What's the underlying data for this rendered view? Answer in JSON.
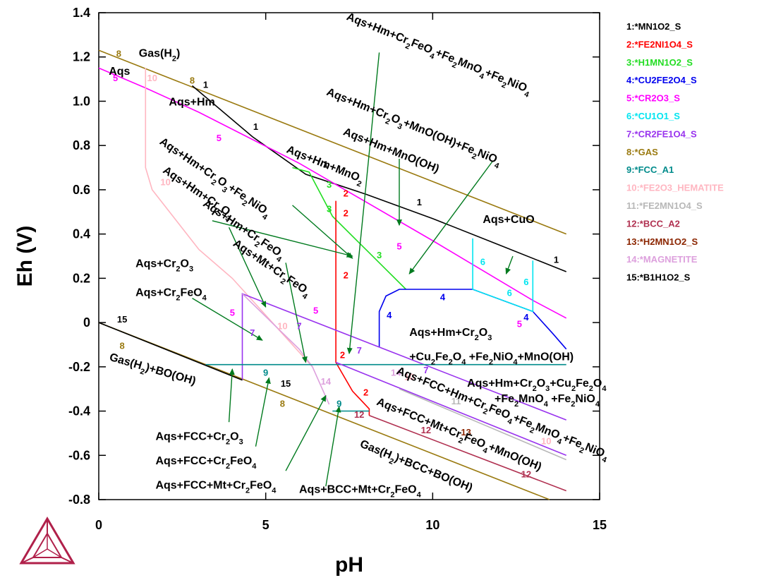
{
  "chart_data": {
    "type": "line",
    "xlabel": "pH",
    "ylabel": "Eh (V)",
    "xlim": [
      0,
      15
    ],
    "ylim": [
      -0.8,
      1.4
    ],
    "xticks": [
      0,
      5,
      10,
      15
    ],
    "yticks": [
      1.4,
      1.2,
      1.0,
      0.8,
      0.6,
      0.4,
      0.2,
      0,
      -0.2,
      -0.4,
      -0.6,
      -0.8
    ],
    "legend_position": "right",
    "legend": [
      {
        "id": "1",
        "label": "1:*MN1O2_S",
        "color": "#000000"
      },
      {
        "id": "2",
        "label": "2:*FE2NI1O4_S",
        "color": "#ff0000"
      },
      {
        "id": "3",
        "label": "3:*H1MN1O2_S",
        "color": "#22dd22"
      },
      {
        "id": "4",
        "label": "4:*CU2FE2O4_S",
        "color": "#0000ee"
      },
      {
        "id": "5",
        "label": "5:*CR2O3_S",
        "color": "#ff00ff"
      },
      {
        "id": "6",
        "label": "6:*CU1O1_S",
        "color": "#00e5f0"
      },
      {
        "id": "7",
        "label": "7:*CR2FE1O4_S",
        "color": "#9933ee"
      },
      {
        "id": "8",
        "label": "8:*GAS",
        "color": "#9a7a10"
      },
      {
        "id": "9",
        "label": "9:*FCC_A1",
        "color": "#008b8b"
      },
      {
        "id": "10",
        "label": "10:*FE2O3_HEMATITE",
        "color": "#ffb6c1"
      },
      {
        "id": "11",
        "label": "11:*FE2MN1O4_S",
        "color": "#b8b8b8"
      },
      {
        "id": "12",
        "label": "12:*BCC_A2",
        "color": "#b03050"
      },
      {
        "id": "13",
        "label": "13:*H2MN1O2_S",
        "color": "#8b2500"
      },
      {
        "id": "14",
        "label": "14:*MAGNETITE",
        "color": "#dda0dd"
      },
      {
        "id": "15",
        "label": "15:*B1H1O2_S",
        "color": "#000000"
      }
    ],
    "series": [
      {
        "id": "8",
        "color": "#9a7a10",
        "x": [
          0,
          14
        ],
        "y": [
          1.23,
          0.4
        ]
      },
      {
        "id": "8",
        "color": "#9a7a10",
        "x": [
          0,
          13.5
        ],
        "y": [
          0.0,
          -0.8
        ]
      },
      {
        "id": "1",
        "color": "#000000",
        "x": [
          2.8,
          4.6,
          6.2,
          8.0,
          10.0,
          12.0,
          14.0
        ],
        "y": [
          1.07,
          0.84,
          0.67,
          0.58,
          0.47,
          0.35,
          0.23
        ]
      },
      {
        "id": "5",
        "color": "#ff00ff",
        "x": [
          0,
          1.4,
          3.0,
          6.0,
          10.0,
          13.0,
          14.0
        ],
        "y": [
          1.15,
          1.06,
          0.95,
          0.72,
          0.37,
          0.1,
          0.02
        ]
      },
      {
        "id": "3",
        "color": "#22dd22",
        "x": [
          5.8,
          6.3,
          7.0,
          8.0,
          9.2
        ],
        "y": [
          0.7,
          0.68,
          0.48,
          0.33,
          0.15
        ]
      },
      {
        "id": "2",
        "color": "#ff0000",
        "x": [
          7.1,
          7.1,
          7.6,
          8.1,
          8.1
        ],
        "y": [
          0.55,
          -0.18,
          -0.31,
          -0.39,
          -0.42
        ]
      },
      {
        "id": "4",
        "color": "#0000ee",
        "x": [
          8.4,
          8.4,
          8.6,
          9.0,
          10.0,
          11.2,
          13.0,
          13.6,
          14.0
        ],
        "y": [
          -0.11,
          0.05,
          0.12,
          0.15,
          0.15,
          0.15,
          0.05,
          -0.05,
          -0.12
        ]
      },
      {
        "id": "6",
        "color": "#00e5f0",
        "x": [
          11.2,
          11.2,
          13.0,
          13.0
        ],
        "y": [
          0.38,
          0.15,
          0.05,
          0.28
        ]
      },
      {
        "id": "10",
        "color": "#ffb6c1",
        "x": [
          1.4,
          1.4,
          1.6,
          3.0,
          4.0,
          5.5,
          6.4
        ],
        "y": [
          1.15,
          0.7,
          0.6,
          0.33,
          0.2,
          -0.05,
          -0.2
        ]
      },
      {
        "id": "7",
        "color": "#9933ee",
        "x": [
          4.3,
          4.3,
          14.0
        ],
        "y": [
          -0.26,
          0.13,
          -0.44
        ]
      },
      {
        "id": "14",
        "color": "#dda0dd",
        "x": [
          4.3,
          6.0,
          6.4,
          6.9
        ],
        "y": [
          0.13,
          -0.12,
          -0.2,
          -0.37
        ]
      },
      {
        "id": "9",
        "color": "#008b8b",
        "x": [
          3.2,
          14.0
        ],
        "y": [
          -0.19,
          -0.19
        ]
      },
      {
        "id": "9",
        "color": "#008b8b",
        "x": [
          7.0,
          8.1
        ],
        "y": [
          -0.4,
          -0.4
        ]
      },
      {
        "id": "7",
        "color": "#9933ee",
        "x": [
          7.1,
          14.0
        ],
        "y": [
          -0.18,
          -0.6
        ]
      },
      {
        "id": "11",
        "color": "#b8b8b8",
        "x": [
          9.0,
          14.0
        ],
        "y": [
          -0.3,
          -0.62
        ]
      },
      {
        "id": "12",
        "color": "#b03050",
        "x": [
          8.1,
          14.0
        ],
        "y": [
          -0.42,
          -0.76
        ]
      },
      {
        "id": "15",
        "color": "#000000",
        "x": [
          0,
          4.3
        ],
        "y": [
          0.0,
          -0.26
        ]
      }
    ],
    "line_labels": [
      {
        "text": "8",
        "x": 0.6,
        "y": 1.2,
        "color": "#9a7a10"
      },
      {
        "text": "8",
        "x": 2.8,
        "y": 1.08,
        "color": "#9a7a10"
      },
      {
        "text": "1",
        "x": 3.2,
        "y": 1.06,
        "color": "#000000"
      },
      {
        "text": "1",
        "x": 4.7,
        "y": 0.87,
        "color": "#000000"
      },
      {
        "text": "1",
        "x": 6.8,
        "y": 0.7,
        "color": "#000000"
      },
      {
        "text": "1",
        "x": 9.6,
        "y": 0.53,
        "color": "#000000"
      },
      {
        "text": "1",
        "x": 13.7,
        "y": 0.27,
        "color": "#000000"
      },
      {
        "text": "5",
        "x": 0.5,
        "y": 1.09,
        "color": "#ff00ff"
      },
      {
        "text": "10",
        "x": 1.6,
        "y": 1.09,
        "color": "#ffb6c1"
      },
      {
        "text": "5",
        "x": 3.6,
        "y": 0.82,
        "color": "#ff00ff"
      },
      {
        "text": "3",
        "x": 6.9,
        "y": 0.61,
        "color": "#22dd22"
      },
      {
        "text": "2",
        "x": 7.4,
        "y": 0.57,
        "color": "#ff0000"
      },
      {
        "text": "3",
        "x": 6.9,
        "y": 0.5,
        "color": "#22dd22"
      },
      {
        "text": "2",
        "x": 7.4,
        "y": 0.48,
        "color": "#ff0000"
      },
      {
        "text": "10",
        "x": 2.0,
        "y": 0.62,
        "color": "#ffb6c1"
      },
      {
        "text": "5",
        "x": 9.0,
        "y": 0.33,
        "color": "#ff00ff"
      },
      {
        "text": "3",
        "x": 8.4,
        "y": 0.29,
        "color": "#22dd22"
      },
      {
        "text": "2",
        "x": 7.4,
        "y": 0.2,
        "color": "#ff0000"
      },
      {
        "text": "6",
        "x": 11.5,
        "y": 0.26,
        "color": "#00e5f0"
      },
      {
        "text": "6",
        "x": 12.3,
        "y": 0.12,
        "color": "#00e5f0"
      },
      {
        "text": "6",
        "x": 12.8,
        "y": 0.17,
        "color": "#00e5f0"
      },
      {
        "text": "4",
        "x": 10.3,
        "y": 0.1,
        "color": "#0000ee"
      },
      {
        "text": "4",
        "x": 8.7,
        "y": 0.02,
        "color": "#0000ee"
      },
      {
        "text": "4",
        "x": 12.8,
        "y": 0.01,
        "color": "#0000ee"
      },
      {
        "text": "5",
        "x": 12.6,
        "y": -0.02,
        "color": "#ff00ff"
      },
      {
        "text": "5",
        "x": 4.0,
        "y": 0.03,
        "color": "#ff00ff"
      },
      {
        "text": "5",
        "x": 6.5,
        "y": 0.04,
        "color": "#ff00ff"
      },
      {
        "text": "7",
        "x": 4.6,
        "y": -0.06,
        "color": "#9933ee"
      },
      {
        "text": "10",
        "x": 5.5,
        "y": -0.03,
        "color": "#ffb6c1"
      },
      {
        "text": "7",
        "x": 6.0,
        "y": -0.03,
        "color": "#9933ee"
      },
      {
        "text": "2",
        "x": 7.3,
        "y": -0.16,
        "color": "#ff0000"
      },
      {
        "text": "7",
        "x": 7.8,
        "y": -0.14,
        "color": "#9933ee"
      },
      {
        "text": "15",
        "x": 0.7,
        "y": 0.0,
        "color": "#000000"
      },
      {
        "text": "8",
        "x": 0.7,
        "y": -0.12,
        "color": "#9a7a10"
      },
      {
        "text": "9",
        "x": 5.0,
        "y": -0.24,
        "color": "#008b8b"
      },
      {
        "text": "15",
        "x": 5.6,
        "y": -0.29,
        "color": "#000000"
      },
      {
        "text": "14",
        "x": 6.8,
        "y": -0.28,
        "color": "#dda0dd"
      },
      {
        "text": "8",
        "x": 5.5,
        "y": -0.38,
        "color": "#9a7a10"
      },
      {
        "text": "2",
        "x": 8.0,
        "y": -0.33,
        "color": "#ff0000"
      },
      {
        "text": "9",
        "x": 7.2,
        "y": -0.38,
        "color": "#008b8b"
      },
      {
        "text": "12",
        "x": 7.8,
        "y": -0.43,
        "color": "#b03050"
      },
      {
        "text": "14",
        "x": 8.9,
        "y": -0.24,
        "color": "#dda0dd"
      },
      {
        "text": "10",
        "x": 9.3,
        "y": -0.26,
        "color": "#ffb6c1"
      },
      {
        "text": "7",
        "x": 9.8,
        "y": -0.23,
        "color": "#9933ee"
      },
      {
        "text": "11",
        "x": 10.7,
        "y": -0.37,
        "color": "#b8b8b8"
      },
      {
        "text": "12",
        "x": 9.8,
        "y": -0.5,
        "color": "#b03050"
      },
      {
        "text": "13",
        "x": 11.0,
        "y": -0.51,
        "color": "#8b2500"
      },
      {
        "text": "10",
        "x": 13.4,
        "y": -0.55,
        "color": "#ffb6c1"
      },
      {
        "text": "12",
        "x": 12.8,
        "y": -0.7,
        "color": "#b03050"
      }
    ],
    "region_labels": [
      {
        "text": "Gas(H2)",
        "x": 1.2,
        "y": 1.2
      },
      {
        "text": "Aqs",
        "x": 0.3,
        "y": 1.12
      },
      {
        "text": "Aqs+Hm",
        "x": 2.1,
        "y": 0.98
      },
      {
        "text": "Aqs+Hm+Cr2FeO4+Fe2MnO4+Fe2NiO4",
        "x": 7.4,
        "y": 1.37,
        "rotate": 22
      },
      {
        "text": "Aqs+Hm+Cr2O3+MnO(OH)+Fe2NiO4",
        "x": 6.8,
        "y": 1.03,
        "rotate": 22
      },
      {
        "text": "Aqs+Hm+MnO(OH)",
        "x": 7.3,
        "y": 0.85,
        "rotate": 22
      },
      {
        "text": "Aqs+Hm+MnO2",
        "x": 5.6,
        "y": 0.77,
        "rotate": 22
      },
      {
        "text": "Aqs+Hm+Cr2O3+Fe2NiO4",
        "x": 1.8,
        "y": 0.81,
        "rotate": 34
      },
      {
        "text": "Aqs+Hm+Cr2O3",
        "x": 1.9,
        "y": 0.68,
        "rotate": 34
      },
      {
        "text": "Aqs+Hm+Cr2FeO4",
        "x": 3.1,
        "y": 0.53,
        "rotate": 34
      },
      {
        "text": "Aqs+Mt+Cr2FeO4",
        "x": 4.0,
        "y": 0.35,
        "rotate": 34
      },
      {
        "text": "Aqs+CuO",
        "x": 11.5,
        "y": 0.45
      },
      {
        "text": "Aqs+Cr2O3",
        "x": 1.1,
        "y": 0.25
      },
      {
        "text": "Aqs+Cr2FeO4",
        "x": 1.1,
        "y": 0.12
      },
      {
        "text": "Aqs+Hm+Cr2O3",
        "x": 9.3,
        "y": -0.06
      },
      {
        "text": "+Cu2Fe2O4 +Fe2NiO4+MnO(OH)",
        "x": 9.3,
        "y": -0.17
      },
      {
        "text": "Aqs+Hm+Cr2O3+Cu2Fe2O4",
        "x": 15.2,
        "y": -0.29
      },
      {
        "text": "+Fe2MnO4 +Fe2NiO4",
        "x": 15.0,
        "y": -0.36
      },
      {
        "text": "Aqs+FCC+Hm+Cr2FeO4+Fe2MnO4+Fe2NiO4",
        "x": 8.9,
        "y": -0.23,
        "rotate": 22
      },
      {
        "text": "Aqs+FCC+Mt+Cr2FeO4+MnO(OH)",
        "x": 8.3,
        "y": -0.37,
        "rotate": 22
      },
      {
        "text": "Gas(H2)+BO(OH)",
        "x": 0.3,
        "y": -0.17,
        "rotate": 16
      },
      {
        "text": "Aqs+FCC+Cr2O3",
        "x": 1.7,
        "y": -0.53
      },
      {
        "text": "Aqs+FCC+Cr2FeO4",
        "x": 1.7,
        "y": -0.64
      },
      {
        "text": "Aqs+FCC+Mt+Cr2FeO4",
        "x": 1.7,
        "y": -0.75
      },
      {
        "text": "Gas(H2)+BCC+BO(OH)",
        "x": 7.8,
        "y": -0.56,
        "rotate": 22
      },
      {
        "text": "Aqs+BCC+Mt+Cr2FeO4",
        "x": 6.0,
        "y": -0.77
      }
    ],
    "arrows": [
      {
        "from": [
          8.4,
          1.22
        ],
        "to": [
          7.5,
          -0.14
        ]
      },
      {
        "from": [
          11.8,
          0.73
        ],
        "to": [
          9.3,
          0.22
        ]
      },
      {
        "from": [
          9.0,
          0.74
        ],
        "to": [
          9.0,
          0.44
        ]
      },
      {
        "from": [
          5.8,
          0.53
        ],
        "to": [
          7.6,
          0.29
        ]
      },
      {
        "from": [
          3.4,
          0.46
        ],
        "to": [
          7.6,
          0.3
        ]
      },
      {
        "from": [
          3.9,
          0.43
        ],
        "to": [
          5.0,
          0.07
        ]
      },
      {
        "from": [
          5.6,
          0.27
        ],
        "to": [
          6.2,
          -0.18
        ]
      },
      {
        "from": [
          12.4,
          0.3
        ],
        "to": [
          12.2,
          0.22
        ]
      },
      {
        "from": [
          2.8,
          0.11
        ],
        "to": [
          4.9,
          -0.08
        ]
      },
      {
        "from": [
          3.9,
          -0.45
        ],
        "to": [
          4.0,
          -0.21
        ]
      },
      {
        "from": [
          4.7,
          -0.56
        ],
        "to": [
          5.1,
          -0.25
        ]
      },
      {
        "from": [
          5.6,
          -0.67
        ],
        "to": [
          6.8,
          -0.33
        ]
      },
      {
        "from": [
          6.8,
          -0.74
        ],
        "to": [
          7.2,
          -0.38
        ]
      }
    ]
  }
}
